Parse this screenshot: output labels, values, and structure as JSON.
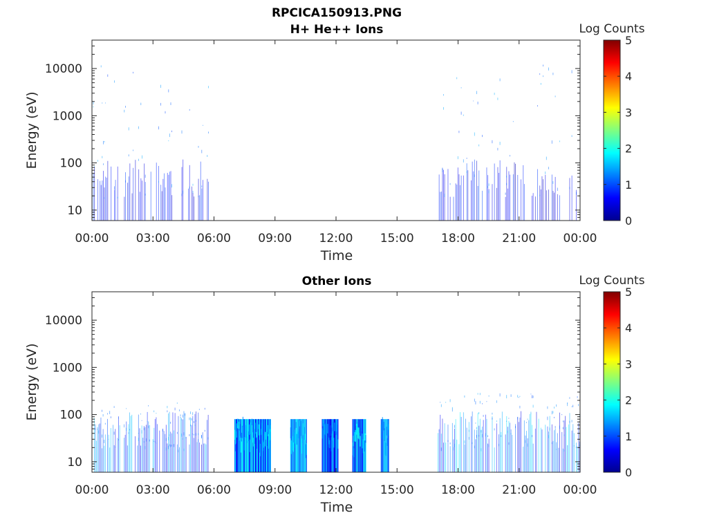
{
  "figure": {
    "title_line1": "RPCICA150913.PNG",
    "title_line2": "H+ He++ Ions"
  },
  "chart_data": [
    {
      "type": "heatmap",
      "title": "H+ He++ Ions",
      "xlabel": "Time",
      "ylabel": "Energy (eV)",
      "x_tick_labels": [
        "00:00",
        "03:00",
        "06:00",
        "09:00",
        "12:00",
        "15:00",
        "18:00",
        "21:00",
        "00:00"
      ],
      "x_range_hours": [
        0,
        24
      ],
      "y_scale": "log",
      "y_tick_values": [
        10,
        100,
        1000,
        10000
      ],
      "y_tick_labels": [
        "10",
        "100",
        "1000",
        "10000"
      ],
      "ylim": [
        6,
        40000
      ],
      "colorbar": {
        "label": "Log Counts",
        "range": [
          0,
          5
        ],
        "tick_labels": [
          "0",
          "1",
          "2",
          "3",
          "4",
          "5"
        ],
        "colormap": "jet"
      },
      "regions": [
        {
          "t_start_hours": 0.0,
          "t_end_hours": 5.8,
          "e_low": 6,
          "e_high": 14000,
          "peak_log_counts": 1.0,
          "density": 0.55
        },
        {
          "t_start_hours": 17.0,
          "t_end_hours": 24.0,
          "e_low": 6,
          "e_high": 14000,
          "peak_log_counts": 1.0,
          "density": 0.55
        }
      ]
    },
    {
      "type": "heatmap",
      "title": "Other Ions",
      "xlabel": "Time",
      "ylabel": "Energy (eV)",
      "x_tick_labels": [
        "00:00",
        "03:00",
        "06:00",
        "09:00",
        "12:00",
        "15:00",
        "18:00",
        "21:00",
        "00:00"
      ],
      "x_range_hours": [
        0,
        24
      ],
      "y_scale": "log",
      "y_tick_values": [
        10,
        100,
        1000,
        10000
      ],
      "y_tick_labels": [
        "10",
        "100",
        "1000",
        "10000"
      ],
      "ylim": [
        6,
        40000
      ],
      "colorbar": {
        "label": "Log Counts",
        "range": [
          0,
          5
        ],
        "tick_labels": [
          "0",
          "1",
          "2",
          "3",
          "4",
          "5"
        ],
        "colormap": "jet"
      },
      "regions": [
        {
          "t_start_hours": 0.1,
          "t_end_hours": 5.8,
          "e_low": 6,
          "e_high": 180,
          "peak_log_counts": 1.7,
          "density": 0.8
        },
        {
          "t_start_hours": 7.0,
          "t_end_hours": 8.8,
          "e_low": 6,
          "e_high": 80,
          "peak_log_counts": 2.0,
          "density": 1.0
        },
        {
          "t_start_hours": 9.75,
          "t_end_hours": 10.55,
          "e_low": 6,
          "e_high": 80,
          "peak_log_counts": 2.0,
          "density": 1.0
        },
        {
          "t_start_hours": 11.3,
          "t_end_hours": 12.1,
          "e_low": 6,
          "e_high": 80,
          "peak_log_counts": 1.7,
          "density": 1.0
        },
        {
          "t_start_hours": 12.8,
          "t_end_hours": 13.45,
          "e_low": 6,
          "e_high": 80,
          "peak_log_counts": 2.0,
          "density": 1.0
        },
        {
          "t_start_hours": 14.2,
          "t_end_hours": 14.6,
          "e_low": 6,
          "e_high": 80,
          "peak_log_counts": 1.7,
          "density": 1.0
        },
        {
          "t_start_hours": 17.0,
          "t_end_hours": 24.0,
          "e_low": 6,
          "e_high": 300,
          "peak_log_counts": 1.8,
          "density": 0.8
        }
      ]
    }
  ]
}
